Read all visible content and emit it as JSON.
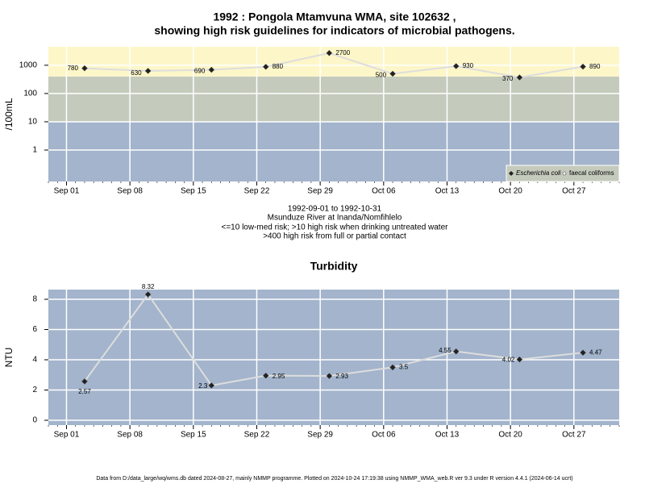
{
  "chart_data": [
    {
      "type": "line",
      "title": "1992 : Pongola Mtamvuna WMA, site 102632 ,",
      "subtitle": "showing high risk guidelines for indicators of microbial pathogens.",
      "y_label": "/100mL",
      "log_scale": true,
      "x": [
        "1992-09-03",
        "1992-09-10",
        "1992-09-17",
        "1992-09-23",
        "1992-09-30",
        "1992-10-07",
        "1992-10-14",
        "1992-10-21",
        "1992-10-28"
      ],
      "series": [
        {
          "name": "Escherichia coli",
          "color": "#222222",
          "line_color": "#dddddd",
          "values": [
            780,
            630,
            690,
            880,
            2700,
            500,
            930,
            370,
            890
          ]
        },
        {
          "name": "faecal coliforms",
          "color": "#ffffff",
          "line_color": "#dddddd",
          "values": [
            null,
            null,
            null,
            null,
            null,
            null,
            null,
            null,
            null
          ]
        }
      ],
      "xlim": [
        "1992-08-30",
        "1992-11-01"
      ],
      "xticks": [
        {
          "value": "1992-09-01",
          "label": "Sep 01"
        },
        {
          "value": "1992-09-08",
          "label": "Sep 08"
        },
        {
          "value": "1992-09-15",
          "label": "Sep 15"
        },
        {
          "value": "1992-09-22",
          "label": "Sep 22"
        },
        {
          "value": "1992-09-29",
          "label": "Sep 29"
        },
        {
          "value": "1992-10-06",
          "label": "Oct 06"
        },
        {
          "value": "1992-10-13",
          "label": "Oct 13"
        },
        {
          "value": "1992-10-20",
          "label": "Oct 20"
        },
        {
          "value": "1992-10-27",
          "label": "Oct 27"
        }
      ],
      "ylim": [
        0.077,
        4500
      ],
      "yticks": [
        1,
        10,
        100,
        1000
      ],
      "thresholds": [
        10,
        400
      ],
      "band_colors": [
        "#a3b4cc",
        "#c4cbbd",
        "#fdf6c8"
      ],
      "grid": true,
      "legend": "bottom-right",
      "notes": [
        "1992-09-01 to 1992-10-31",
        "Msunduze River at Inanda/Nomfihlelo",
        "<=10 low-med risk; >10 high risk when drinking untreated water",
        ">400 high risk from full or partial contact"
      ]
    },
    {
      "type": "line",
      "title": "Turbidity",
      "y_label": "NTU",
      "log_scale": false,
      "x": [
        "1992-09-03",
        "1992-09-10",
        "1992-09-17",
        "1992-09-23",
        "1992-09-30",
        "1992-10-07",
        "1992-10-14",
        "1992-10-21",
        "1992-10-28"
      ],
      "series": [
        {
          "name": "Turbidity",
          "color": "#222222",
          "line_color": "#dddddd",
          "values": [
            2.57,
            8.32,
            2.3,
            2.95,
            2.93,
            3.5,
            4.55,
            4.02,
            4.47
          ]
        }
      ],
      "xlim": [
        "1992-08-30",
        "1992-11-01"
      ],
      "xticks": [
        {
          "value": "1992-09-01",
          "label": "Sep 01"
        },
        {
          "value": "1992-09-08",
          "label": "Sep 08"
        },
        {
          "value": "1992-09-15",
          "label": "Sep 15"
        },
        {
          "value": "1992-09-22",
          "label": "Sep 22"
        },
        {
          "value": "1992-09-29",
          "label": "Sep 29"
        },
        {
          "value": "1992-10-06",
          "label": "Oct 06"
        },
        {
          "value": "1992-10-13",
          "label": "Oct 13"
        },
        {
          "value": "1992-10-20",
          "label": "Oct 20"
        },
        {
          "value": "1992-10-27",
          "label": "Oct 27"
        }
      ],
      "ylim": [
        -0.32,
        8.64
      ],
      "yticks": [
        0,
        2,
        4,
        6,
        8
      ],
      "background": "#a3b4cc",
      "grid": true
    }
  ],
  "footer": "Data from D:/data_large/wq/wms.db dated 2024-08-27, mainly NMMP programme. Plotted on 2024-10-24 17:19:38 using NMMP_WMA_web.R ver 9.3 under R version 4.4.1 (2024-06-14 ucrt)"
}
